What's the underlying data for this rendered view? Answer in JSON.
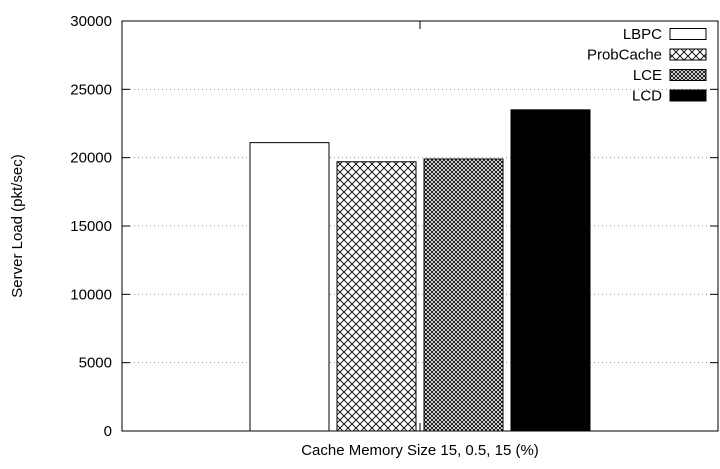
{
  "chart_data": {
    "type": "bar",
    "title": "",
    "xlabel": "Cache Memory Size 15, 0.5, 15 (%)",
    "ylabel": "Server Load (pkt/sec)",
    "ylim": [
      0,
      30000
    ],
    "yticks": [
      0,
      5000,
      10000,
      15000,
      20000,
      25000,
      30000
    ],
    "grid": "horizontal dotted",
    "legend_position": "top-right",
    "categories": [
      "Cache Memory Size 15, 0.5, 15 (%)"
    ],
    "series": [
      {
        "name": "LBPC",
        "values": [
          21100
        ],
        "pattern": "solid",
        "color": "#ffffff"
      },
      {
        "name": "ProbCache",
        "values": [
          19700
        ],
        "pattern": "crosshatch",
        "color": "#ffffff"
      },
      {
        "name": "LCE",
        "values": [
          19900
        ],
        "pattern": "dense-crosshatch",
        "color": "#ffffff"
      },
      {
        "name": "LCD",
        "values": [
          23500
        ],
        "pattern": "solid",
        "color": "#000000"
      }
    ]
  }
}
